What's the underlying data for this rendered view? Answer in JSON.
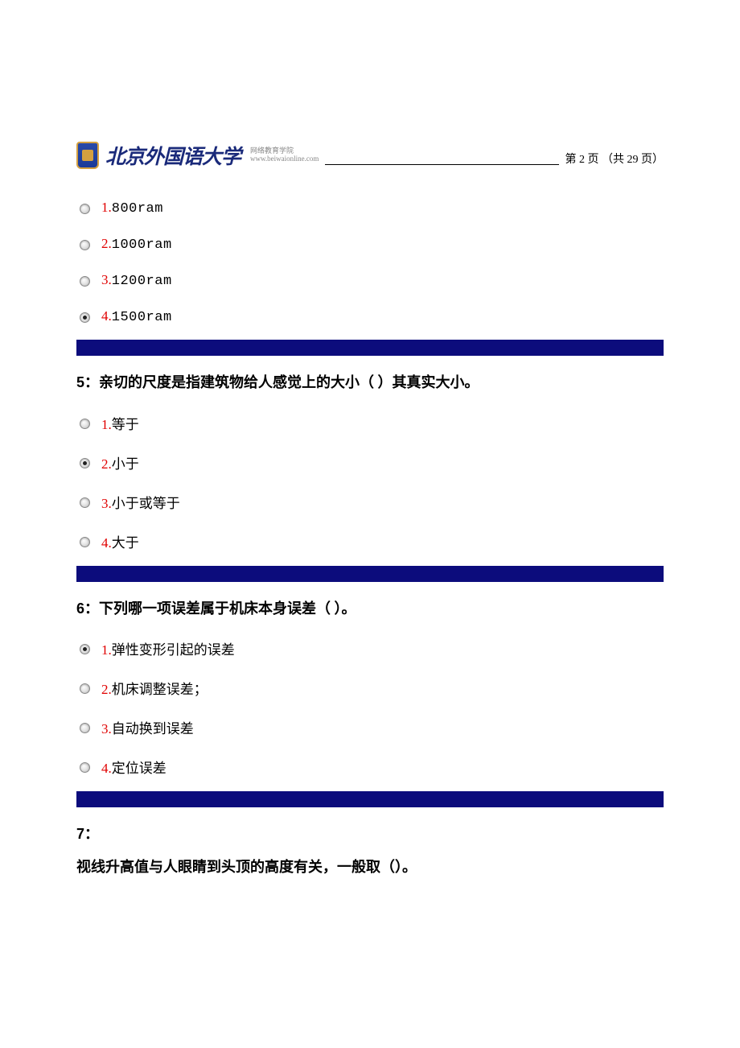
{
  "header": {
    "logo_text": "北京外国语大学",
    "logo_sub1": "网络教育学院",
    "logo_sub2": "www.beiwaionline.com",
    "page_label_prefix": "第 ",
    "page_current": "2",
    "page_label_mid": " 页 （共 ",
    "page_total": "29",
    "page_label_suffix": " 页）"
  },
  "colors": {
    "option_number": "#e00000",
    "divider": "#0c0c7c",
    "text": "#000000",
    "logo": "#1a2a7a"
  },
  "q4_options": [
    {
      "num": "1.",
      "text": "800ram",
      "selected": false
    },
    {
      "num": "2.",
      "text": "1000ram",
      "selected": false
    },
    {
      "num": "3.",
      "text": "1200ram",
      "selected": false
    },
    {
      "num": "4.",
      "text": "1500ram",
      "selected": true
    }
  ],
  "q5": {
    "num": "5：",
    "text": "亲切的尺度是指建筑物给人感觉上的大小（  ）其真实大小。",
    "options": [
      {
        "num": "1.",
        "text": "等于",
        "selected": false
      },
      {
        "num": "2.",
        "text": "小于",
        "selected": true
      },
      {
        "num": "3.",
        "text": "小于或等于",
        "selected": false
      },
      {
        "num": "4.",
        "text": "大于",
        "selected": false
      }
    ]
  },
  "q6": {
    "num": "6：",
    "text": "下列哪一项误差属于机床本身误差（    ）。",
    "options": [
      {
        "num": "1.",
        "text": "弹性变形引起的误差",
        "selected": true
      },
      {
        "num": "2.",
        "text": "机床调整误差；",
        "selected": false
      },
      {
        "num": "3.",
        "text": "自动换到误差",
        "selected": false
      },
      {
        "num": "4.",
        "text": "定位误差",
        "selected": false
      }
    ]
  },
  "q7": {
    "num": "7：",
    "text": "视线升高值与人眼睛到头顶的高度有关，一般取（）。"
  }
}
